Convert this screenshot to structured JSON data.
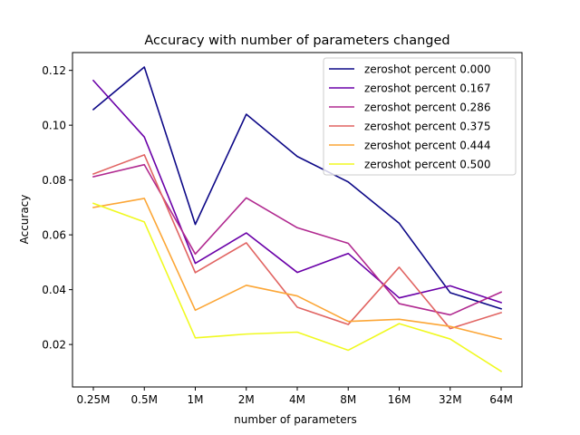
{
  "chart_data": {
    "type": "line",
    "title": "Accuracy with number of parameters changed",
    "xlabel": "number of parameters",
    "ylabel": "Accuracy",
    "categories": [
      "0.25M",
      "0.5M",
      "1M",
      "2M",
      "4M",
      "8M",
      "16M",
      "32M",
      "64M"
    ],
    "ylim": [
      0.0045,
      0.1265
    ],
    "yticks": [
      0.02,
      0.04,
      0.06,
      0.08,
      0.1,
      0.12
    ],
    "ytick_labels": [
      "0.02",
      "0.04",
      "0.06",
      "0.08",
      "0.10",
      "0.12"
    ],
    "grid": false,
    "legend_position": "top-right",
    "series": [
      {
        "name": "zeroshot percent 0.000",
        "color": "#0d0887",
        "values": [
          0.1057,
          0.1212,
          0.0638,
          0.104,
          0.0886,
          0.0793,
          0.0642,
          0.0389,
          0.033
        ]
      },
      {
        "name": "zeroshot percent 0.167",
        "color": "#6a00a8",
        "values": [
          0.1163,
          0.0957,
          0.0496,
          0.0607,
          0.0463,
          0.0532,
          0.037,
          0.0414,
          0.0353
        ]
      },
      {
        "name": "zeroshot percent 0.286",
        "color": "#b12a90",
        "values": [
          0.0812,
          0.0856,
          0.053,
          0.0735,
          0.0626,
          0.0569,
          0.0349,
          0.0308,
          0.0391
        ]
      },
      {
        "name": "zeroshot percent 0.375",
        "color": "#e16462",
        "values": [
          0.0822,
          0.0892,
          0.0462,
          0.0571,
          0.0336,
          0.0273,
          0.0482,
          0.0258,
          0.0316
        ]
      },
      {
        "name": "zeroshot percent 0.444",
        "color": "#fca636",
        "values": [
          0.07,
          0.0733,
          0.0325,
          0.0416,
          0.0377,
          0.0284,
          0.0292,
          0.0266,
          0.022
        ]
      },
      {
        "name": "zeroshot percent 0.500",
        "color": "#f0f921",
        "values": [
          0.0715,
          0.0647,
          0.0224,
          0.0238,
          0.0245,
          0.0179,
          0.0276,
          0.022,
          0.0102
        ]
      }
    ]
  }
}
